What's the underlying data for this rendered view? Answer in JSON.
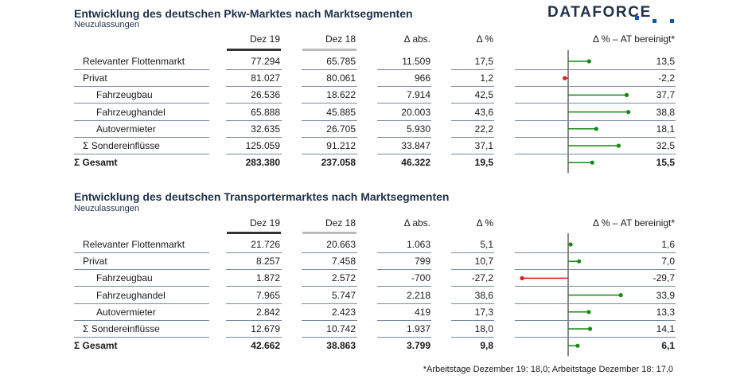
{
  "logo": {
    "text": "DATAFORCE"
  },
  "colors": {
    "positive": "#168a16",
    "negative": "#e01a1a",
    "axis": "#888888",
    "title": "#1f3149",
    "dez19_underline": "#333333",
    "dez18_underline": "#bbbbbb"
  },
  "tables": [
    {
      "title": "Entwicklung des deutschen Pkw-Marktes nach Marktsegmenten",
      "subtitle": "Neuzulassungen",
      "headers": {
        "dez19": "Dez 19",
        "dez18": "Dez 18",
        "abs": "Δ abs.",
        "pct": "Δ %",
        "at": "Δ % – AT bereinigt*"
      },
      "rows": [
        {
          "label": "Relevanter Flottenmarkt",
          "indent": 1,
          "bold": false,
          "dez19": "77.294",
          "dez18": "65.785",
          "abs": "11.509",
          "pct": "17,5",
          "at": "13,5",
          "at_value": 13.5
        },
        {
          "label": "Privat",
          "indent": 1,
          "bold": false,
          "dez19": "81.027",
          "dez18": "80.061",
          "abs": "966",
          "pct": "1,2",
          "at": "-2,2",
          "at_value": -2.2
        },
        {
          "label": "Fahrzeugbau",
          "indent": 2,
          "bold": false,
          "dez19": "26.536",
          "dez18": "18.622",
          "abs": "7.914",
          "pct": "42,5",
          "at": "37,7",
          "at_value": 37.7
        },
        {
          "label": "Fahrzeughandel",
          "indent": 2,
          "bold": false,
          "dez19": "65.888",
          "dez18": "45.885",
          "abs": "20.003",
          "pct": "43,6",
          "at": "38,8",
          "at_value": 38.8
        },
        {
          "label": "Autovermieter",
          "indent": 2,
          "bold": false,
          "dez19": "32.635",
          "dez18": "26.705",
          "abs": "5.930",
          "pct": "22,2",
          "at": "18,1",
          "at_value": 18.1
        },
        {
          "label": "Σ Sondereinflüsse",
          "indent": 1,
          "bold": false,
          "dez19": "125.059",
          "dez18": "91.212",
          "abs": "33.847",
          "pct": "37,1",
          "at": "32,5",
          "at_value": 32.5
        },
        {
          "label": "Σ Gesamt",
          "indent": 0,
          "bold": true,
          "dez19": "283.380",
          "dez18": "237.058",
          "abs": "46.322",
          "pct": "19,5",
          "at": "15,5",
          "at_value": 15.5
        }
      ]
    },
    {
      "title": "Entwicklung des deutschen Transportermarktes nach Marktsegmenten",
      "subtitle": "Neuzulassungen",
      "headers": {
        "dez19": "Dez 19",
        "dez18": "Dez 18",
        "abs": "Δ abs.",
        "pct": "Δ %",
        "at": "Δ % – AT bereinigt*"
      },
      "rows": [
        {
          "label": "Relevanter Flottenmarkt",
          "indent": 1,
          "bold": false,
          "dez19": "21.726",
          "dez18": "20.663",
          "abs": "1.063",
          "pct": "5,1",
          "at": "1,6",
          "at_value": 1.6
        },
        {
          "label": "Privat",
          "indent": 1,
          "bold": false,
          "dez19": "8.257",
          "dez18": "7.458",
          "abs": "799",
          "pct": "10,7",
          "at": "7,0",
          "at_value": 7.0
        },
        {
          "label": "Fahrzeugbau",
          "indent": 2,
          "bold": false,
          "dez19": "1.872",
          "dez18": "2.572",
          "abs": "-700",
          "pct": "-27,2",
          "at": "-29,7",
          "at_value": -29.7
        },
        {
          "label": "Fahrzeughandel",
          "indent": 2,
          "bold": false,
          "dez19": "7.965",
          "dez18": "5.747",
          "abs": "2.218",
          "pct": "38,6",
          "at": "33,9",
          "at_value": 33.9
        },
        {
          "label": "Autovermieter",
          "indent": 2,
          "bold": false,
          "dez19": "2.842",
          "dez18": "2.423",
          "abs": "419",
          "pct": "17,3",
          "at": "13,3",
          "at_value": 13.3
        },
        {
          "label": "Σ Sondereinflüsse",
          "indent": 1,
          "bold": false,
          "dez19": "12.679",
          "dez18": "10.742",
          "abs": "1.937",
          "pct": "18,0",
          "at": "14,1",
          "at_value": 14.1
        },
        {
          "label": "Σ Gesamt",
          "indent": 0,
          "bold": true,
          "dez19": "42.662",
          "dez18": "38.863",
          "abs": "3.799",
          "pct": "9,8",
          "at": "6,1",
          "at_value": 6.1
        }
      ]
    }
  ],
  "chart_data": [
    {
      "type": "bar",
      "title": "Δ % – AT bereinigt* (Pkw)",
      "categories": [
        "Relevanter Flottenmarkt",
        "Privat",
        "Fahrzeugbau",
        "Fahrzeughandel",
        "Autovermieter",
        "Σ Sondereinflüsse",
        "Σ Gesamt"
      ],
      "values": [
        13.5,
        -2.2,
        37.7,
        38.8,
        18.1,
        32.5,
        15.5
      ],
      "orientation": "horizontal",
      "xlim": [
        -30,
        40
      ]
    },
    {
      "type": "bar",
      "title": "Δ % – AT bereinigt* (Transporter)",
      "categories": [
        "Relevanter Flottenmarkt",
        "Privat",
        "Fahrzeugbau",
        "Fahrzeughandel",
        "Autovermieter",
        "Σ Sondereinflüsse",
        "Σ Gesamt"
      ],
      "values": [
        1.6,
        7.0,
        -29.7,
        33.9,
        13.3,
        14.1,
        6.1
      ],
      "orientation": "horizontal",
      "xlim": [
        -30,
        40
      ]
    }
  ],
  "footnote": "*Arbeitstage Dezember 19: 18,0; Arbeitstage Dezember 18: 17,0"
}
